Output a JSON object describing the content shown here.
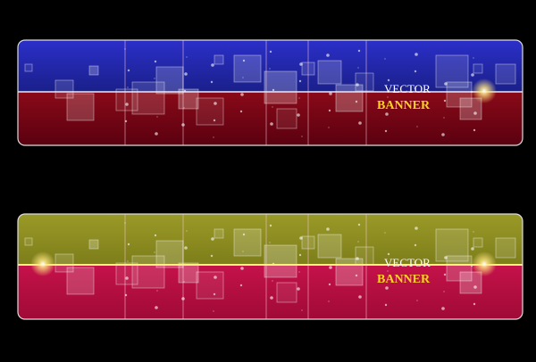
{
  "banners": [
    {
      "line1": "VECTOR",
      "line2": "BANNER"
    },
    {
      "line1": "VECTOR",
      "line2": "BANNER"
    }
  ]
}
